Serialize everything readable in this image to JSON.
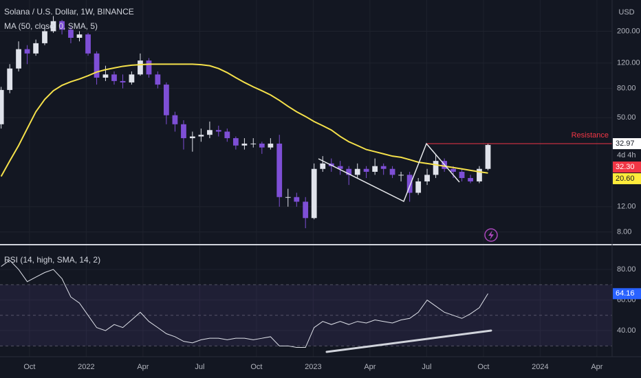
{
  "header": {
    "currency": "USD"
  },
  "chart_data": [
    {
      "type": "candlestick",
      "title": "Solana / U.S. Dollar, 1W, BINANCE",
      "x": [
        2021.625,
        2021.663,
        2021.702,
        2021.74,
        2021.778,
        2021.817,
        2021.855,
        2021.893,
        2021.932,
        2021.97,
        2022.008,
        2022.046,
        2022.085,
        2022.123,
        2022.161,
        2022.2,
        2022.238,
        2022.276,
        2022.315,
        2022.353,
        2022.391,
        2022.429,
        2022.468,
        2022.506,
        2022.544,
        2022.583,
        2022.621,
        2022.659,
        2022.697,
        2022.736,
        2022.774,
        2022.812,
        2022.851,
        2022.889,
        2022.927,
        2022.966,
        2023.004,
        2023.042,
        2023.08,
        2023.119,
        2023.157,
        2023.195,
        2023.234,
        2023.272,
        2023.31,
        2023.349,
        2023.387,
        2023.425,
        2023.463,
        2023.502,
        2023.54,
        2023.578,
        2023.617,
        2023.655,
        2023.693,
        2023.732,
        2023.77
      ],
      "open": [
        45,
        78,
        110,
        150,
        140,
        165,
        200,
        235,
        205,
        180,
        190,
        140,
        95,
        100,
        90,
        88,
        100,
        125,
        100,
        85,
        52,
        45,
        36,
        37,
        38,
        41,
        40,
        36,
        32,
        33,
        33,
        31,
        33,
        14,
        14,
        13,
        10,
        22,
        24,
        23,
        22,
        20,
        22,
        21,
        23,
        22,
        20,
        20,
        15,
        18,
        20,
        25,
        22,
        21,
        19,
        18,
        22
      ],
      "high": [
        82,
        118,
        170,
        160,
        175,
        215,
        255,
        240,
        215,
        200,
        195,
        145,
        115,
        105,
        100,
        105,
        140,
        130,
        105,
        88,
        55,
        48,
        40,
        42,
        47,
        44,
        42,
        37,
        36,
        36,
        34,
        36,
        38,
        16,
        15,
        14,
        24,
        27,
        26,
        25,
        23,
        24,
        23,
        26,
        24,
        23,
        21,
        21,
        19,
        22,
        28,
        26,
        23,
        22,
        20,
        23,
        32.97
      ],
      "low": [
        42,
        74,
        105,
        118,
        135,
        160,
        195,
        190,
        165,
        170,
        135,
        85,
        90,
        85,
        80,
        85,
        98,
        95,
        80,
        45,
        40,
        30,
        29,
        34,
        36,
        37,
        34,
        30,
        30,
        31,
        28,
        30,
        12,
        12,
        12,
        8.5,
        9.8,
        21,
        21,
        20,
        17,
        19,
        19,
        20,
        20,
        19,
        18,
        13,
        14.5,
        17,
        19,
        21,
        19,
        18,
        17.5,
        17.5,
        21.5
      ],
      "close": [
        78,
        110,
        150,
        140,
        165,
        200,
        235,
        205,
        180,
        190,
        140,
        95,
        100,
        90,
        88,
        100,
        125,
        100,
        85,
        52,
        45,
        36,
        37,
        38,
        41,
        40,
        36,
        32,
        33,
        33,
        31,
        33,
        14,
        14,
        13,
        10,
        22,
        24,
        23,
        22,
        20,
        22,
        21,
        23,
        22,
        20,
        20,
        15,
        18,
        20,
        25,
        22,
        21,
        19,
        18,
        22,
        32.3
      ],
      "up_color": "#e0e3eb",
      "down_color": "#7e4fd6",
      "log_scale": true,
      "grid": true,
      "xlim": [
        2021.62,
        2024.317
      ],
      "xticks": [
        {
          "value": 2021.75,
          "label": "Oct"
        },
        2022,
        {
          "value": 2022.25,
          "label": "Apr"
        },
        {
          "value": 2022.5,
          "label": "Jul"
        },
        {
          "value": 2022.75,
          "label": "Oct"
        },
        2023,
        {
          "value": 2023.25,
          "label": "Apr"
        },
        {
          "value": 2023.5,
          "label": "Jul"
        },
        {
          "value": 2023.75,
          "label": "Oct"
        },
        2024,
        {
          "value": 2024.25,
          "label": "Apr"
        }
      ],
      "ylim": [
        6.6,
        330
      ],
      "yticks": [
        {
          "value": 8,
          "label": "8.00"
        },
        {
          "value": 12,
          "label": "12.00"
        },
        {
          "value": 50,
          "label": "50.00"
        },
        {
          "value": 80,
          "label": "80.00"
        },
        {
          "value": 120,
          "label": "120.00"
        },
        {
          "value": 200,
          "label": "200.00"
        }
      ],
      "overlay": {
        "name": "MA (50, close, 0, SMA, 5)",
        "color": "#f5e14a",
        "values": [
          19.5,
          25,
          32,
          42,
          55,
          67,
          77,
          84,
          89,
          93,
          98,
          104,
          108,
          111,
          114,
          116,
          117,
          118,
          118,
          118,
          118,
          118,
          118,
          117,
          115,
          110,
          103,
          95,
          88,
          82,
          77,
          72,
          66,
          60,
          55,
          51,
          47,
          44,
          41,
          37,
          34,
          32,
          30,
          29,
          28,
          27,
          26.5,
          25.5,
          24.5,
          24,
          23.5,
          23,
          22.5,
          22,
          21.5,
          21,
          20.6
        ]
      },
      "price_labels": [
        {
          "value": 32.97,
          "color": "#ffffff",
          "text_color": "#131722"
        },
        {
          "value": 32.3,
          "label": "32.30",
          "color": "#f23645",
          "text_color": "#ffffff"
        },
        {
          "value": 20.6,
          "label": "20.60",
          "color": "#ffeb3b",
          "text_color": "#131722"
        }
      ],
      "countdown": "4d 4h",
      "annotation": {
        "text": "Resistance",
        "value": 32.97,
        "color": "#f23645"
      }
    },
    {
      "type": "line",
      "title": "RSI (14, high, SMA, 14, 2)",
      "color": "#e0e3eb",
      "x": [
        2021.625,
        2021.663,
        2021.702,
        2021.74,
        2021.778,
        2021.817,
        2021.855,
        2021.893,
        2021.932,
        2021.97,
        2022.008,
        2022.046,
        2022.085,
        2022.123,
        2022.161,
        2022.2,
        2022.238,
        2022.276,
        2022.315,
        2022.353,
        2022.391,
        2022.429,
        2022.468,
        2022.506,
        2022.544,
        2022.583,
        2022.621,
        2022.659,
        2022.697,
        2022.736,
        2022.774,
        2022.812,
        2022.851,
        2022.889,
        2022.927,
        2022.966,
        2023.004,
        2023.042,
        2023.08,
        2023.119,
        2023.157,
        2023.195,
        2023.234,
        2023.272,
        2023.31,
        2023.349,
        2023.387,
        2023.425,
        2023.463,
        2023.502,
        2023.54,
        2023.578,
        2023.617,
        2023.655,
        2023.693,
        2023.732,
        2023.77
      ],
      "values": [
        82,
        86,
        80,
        72,
        75,
        78,
        80,
        74,
        62,
        58,
        50,
        42,
        40,
        44,
        42,
        47,
        52,
        46,
        42,
        38,
        36,
        33,
        32,
        34,
        35,
        35,
        34,
        35,
        35,
        34,
        35,
        36,
        30,
        30,
        29,
        29,
        42,
        46,
        44,
        46,
        44,
        46,
        45,
        47,
        46,
        45,
        47,
        48,
        52,
        60,
        56,
        52,
        50,
        48,
        51,
        55,
        64.16
      ],
      "xlim": [
        2021.62,
        2024.317
      ],
      "ylim": [
        23.4,
        95.3
      ],
      "yticks": [
        {
          "value": 40,
          "label": "40.00"
        },
        {
          "value": 60,
          "label": "60.00"
        },
        {
          "value": 80,
          "label": "80.00"
        }
      ],
      "levels": [
        70,
        50,
        30
      ],
      "band_color": "rgba(126,87,194,0.12)",
      "last_color": "#2962ff"
    }
  ]
}
